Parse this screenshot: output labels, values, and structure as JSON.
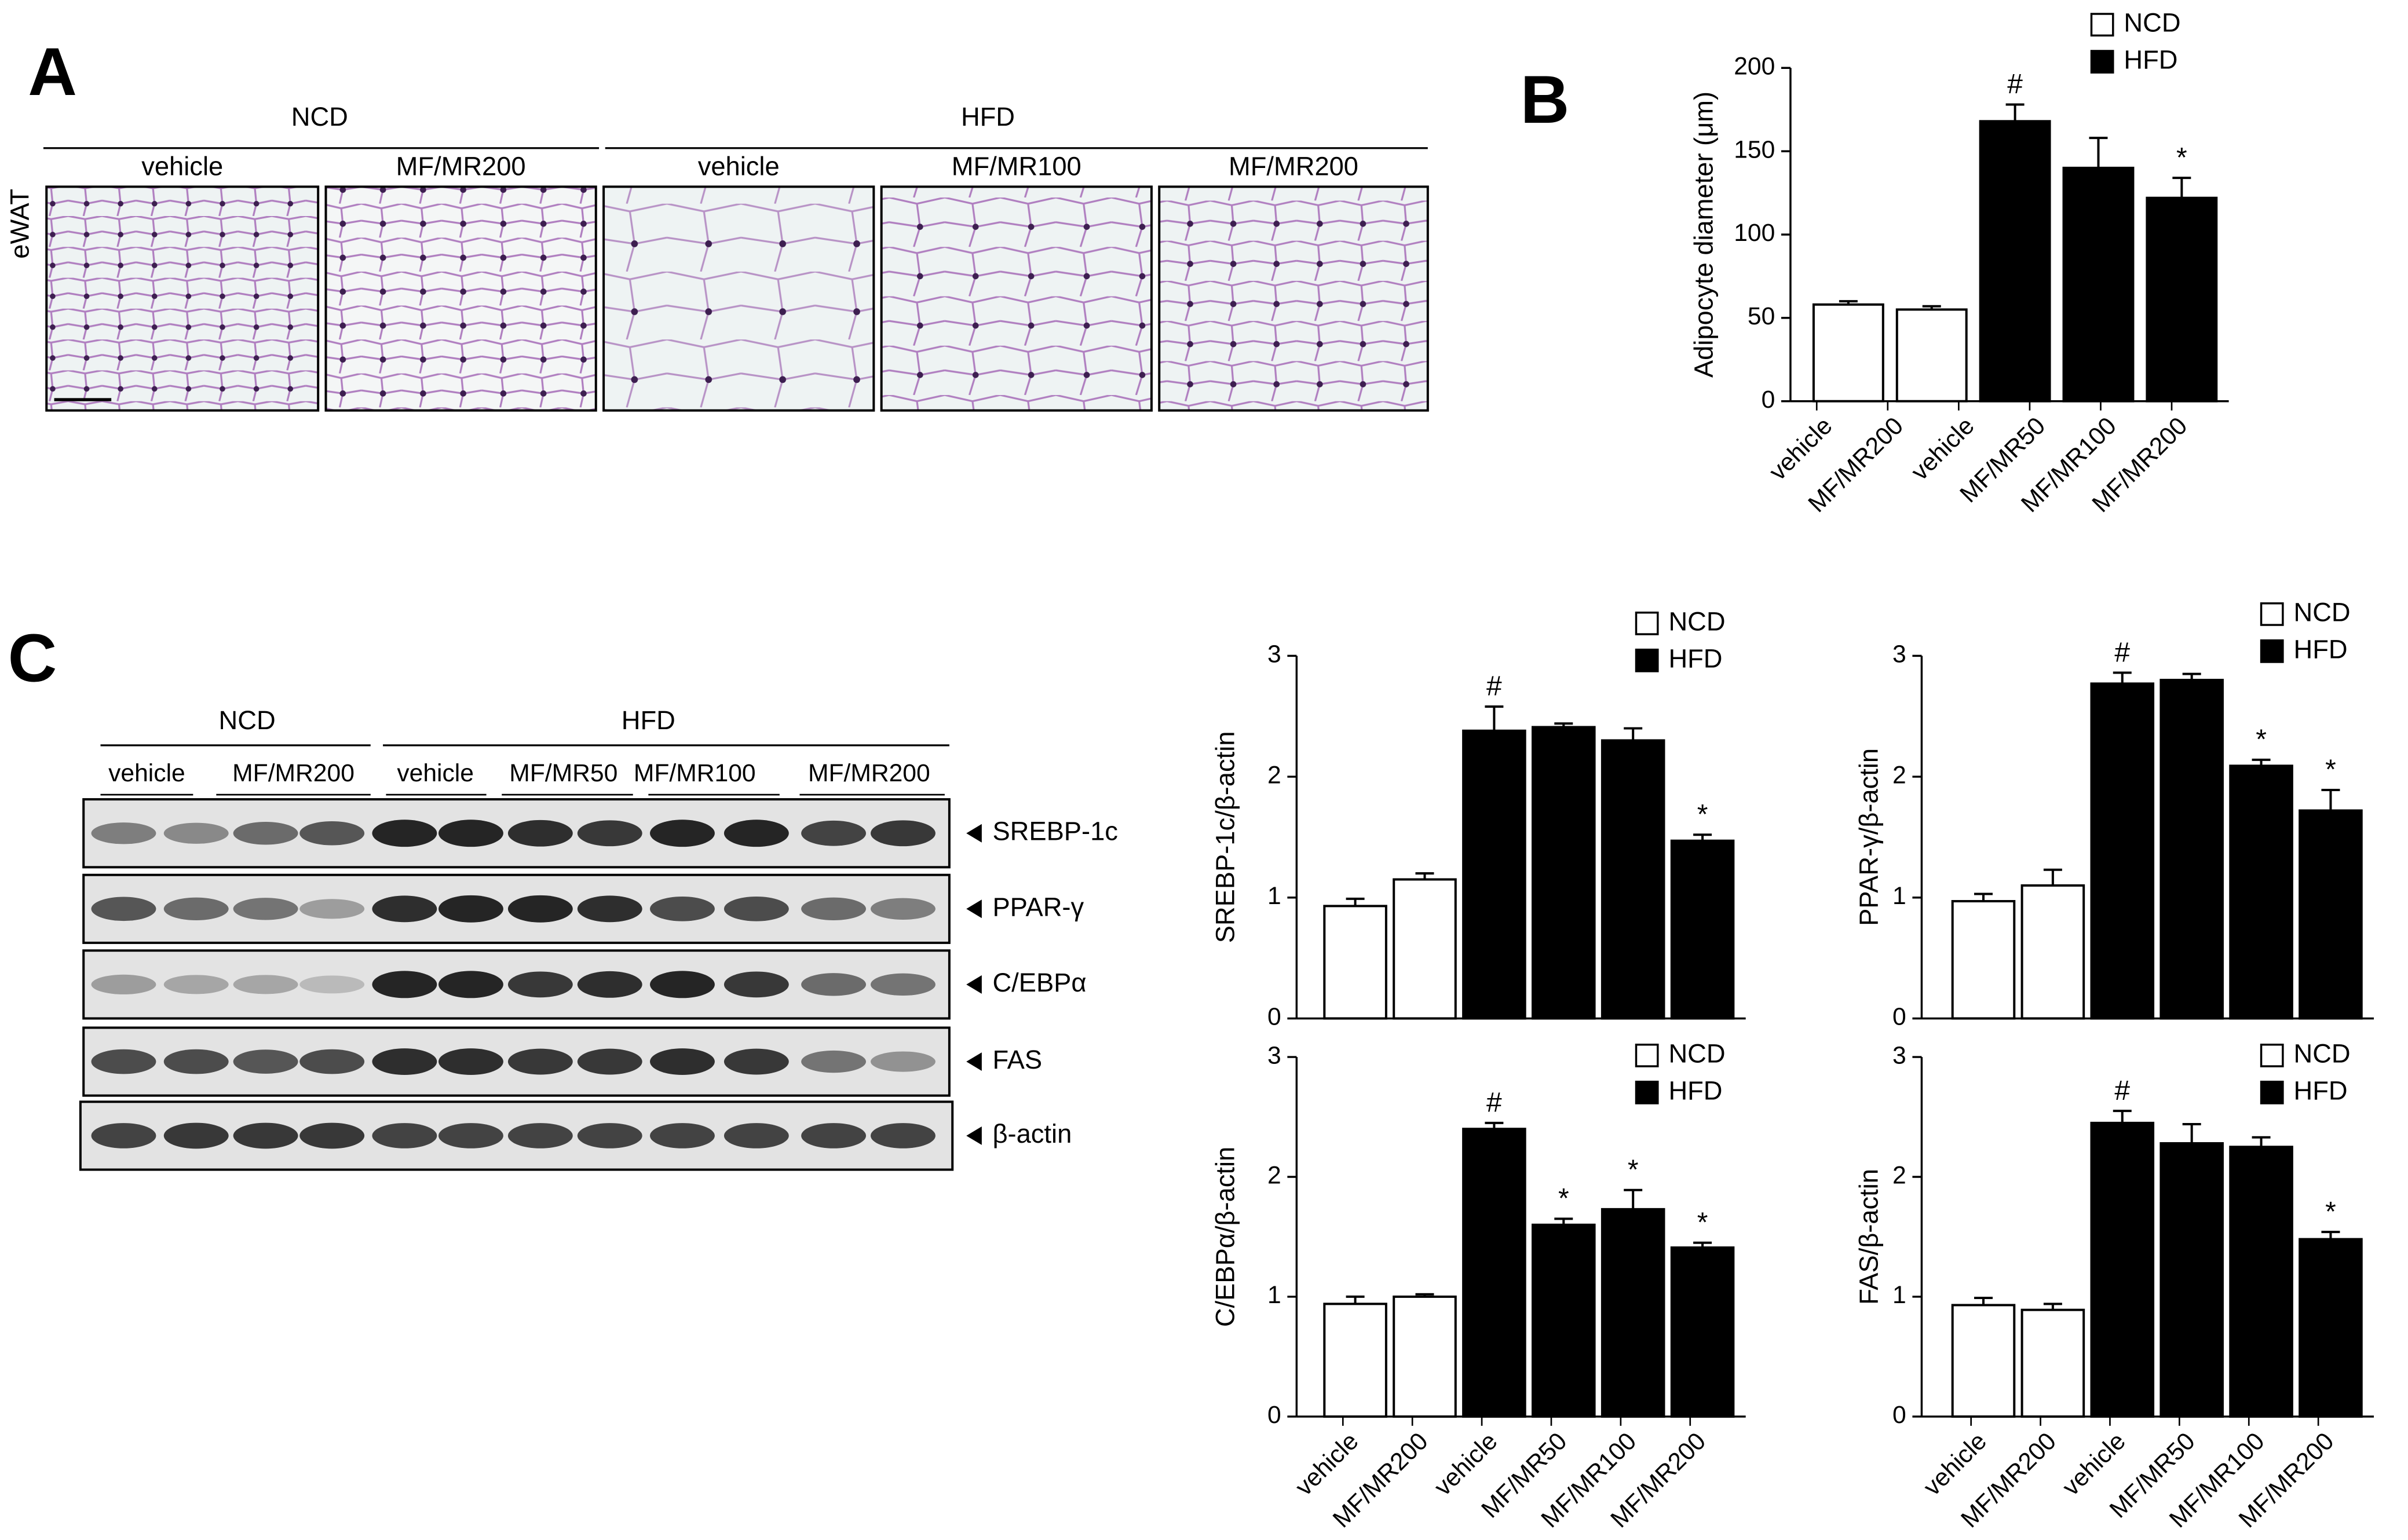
{
  "panel_a": {
    "label": "A",
    "groups": [
      "NCD",
      "HFD"
    ],
    "lanes": [
      "vehicle",
      "MF/MR200",
      "vehicle",
      "MF/MR100",
      "MF/MR200"
    ],
    "tissue": "eWAT"
  },
  "panel_b": {
    "label": "B"
  },
  "panel_c": {
    "label": "C",
    "groups": [
      "NCD",
      "HFD"
    ],
    "lanes": [
      "vehicle",
      "MF/MR200",
      "vehicle",
      "MF/MR50",
      "MF/MR100",
      "MF/MR200"
    ],
    "proteins": [
      "SREBP-1c",
      "PPAR-γ",
      "C/EBPα",
      "FAS",
      "β-actin"
    ]
  },
  "chart_data": [
    {
      "type": "bar",
      "y_label": "Adipocyte  diameter (μm)",
      "categories": [
        "vehicle",
        "MF/MR200",
        "vehicle",
        "MF/MR50",
        "MF/MR100",
        "MF/MR200"
      ],
      "values": [
        58,
        55,
        168,
        140,
        122,
        null
      ],
      "errors": [
        2,
        2,
        10,
        18,
        12,
        null
      ],
      "colors": [
        "#ffffff",
        "#ffffff",
        "#000000",
        "#000000",
        "#000000",
        "#000000"
      ],
      "ylim": [
        0,
        200
      ],
      "yticks": [
        0,
        50,
        100,
        150,
        200
      ],
      "legend": [
        {
          "name": "NCD",
          "color": "#ffffff"
        },
        {
          "name": "HFD",
          "color": "#000000"
        }
      ],
      "annotations": [
        {
          "index": 2,
          "text": "#"
        },
        {
          "index": 4,
          "text": "*"
        }
      ]
    },
    {
      "type": "bar",
      "y_label": "SREBP-1c/β-actin",
      "values": [
        0.93,
        1.15,
        2.38,
        2.41,
        2.3,
        1.47
      ],
      "errors": [
        0.06,
        0.05,
        0.2,
        0.03,
        0.1,
        0.05
      ],
      "colors": [
        "#ffffff",
        "#ffffff",
        "#000000",
        "#000000",
        "#000000",
        "#000000"
      ],
      "ylim": [
        0,
        3
      ],
      "yticks": [
        0,
        1,
        2,
        3
      ],
      "legend": [
        {
          "name": "NCD",
          "color": "#ffffff"
        },
        {
          "name": "HFD",
          "color": "#000000"
        }
      ],
      "annotations": [
        {
          "index": 2,
          "text": "#"
        },
        {
          "index": 5,
          "text": "*"
        }
      ]
    },
    {
      "type": "bar",
      "y_label": "PPAR-γ/β-actin",
      "values": [
        0.97,
        1.1,
        2.77,
        2.8,
        2.09,
        1.72
      ],
      "errors": [
        0.06,
        0.13,
        0.09,
        0.05,
        0.05,
        0.17
      ],
      "colors": [
        "#ffffff",
        "#ffffff",
        "#000000",
        "#000000",
        "#000000",
        "#000000"
      ],
      "ylim": [
        0,
        3
      ],
      "yticks": [
        0,
        1,
        2,
        3
      ],
      "legend": [
        {
          "name": "NCD",
          "color": "#ffffff"
        },
        {
          "name": "HFD",
          "color": "#000000"
        }
      ],
      "annotations": [
        {
          "index": 2,
          "text": "#"
        },
        {
          "index": 4,
          "text": "*"
        },
        {
          "index": 5,
          "text": "*"
        }
      ]
    },
    {
      "type": "bar",
      "y_label": "C/EBPα/β-actin",
      "categories": [
        "vehicle",
        "MF/MR200",
        "vehicle",
        "MF/MR50",
        "MF/MR100",
        "MF/MR200"
      ],
      "values": [
        0.94,
        1.0,
        2.4,
        1.6,
        1.73,
        1.41
      ],
      "errors": [
        0.06,
        0.02,
        0.05,
        0.05,
        0.16,
        0.04
      ],
      "colors": [
        "#ffffff",
        "#ffffff",
        "#000000",
        "#000000",
        "#000000",
        "#000000"
      ],
      "ylim": [
        0,
        3
      ],
      "yticks": [
        0,
        1,
        2,
        3
      ],
      "legend": [
        {
          "name": "NCD",
          "color": "#ffffff"
        },
        {
          "name": "HFD",
          "color": "#000000"
        }
      ],
      "annotations": [
        {
          "index": 2,
          "text": "#"
        },
        {
          "index": 3,
          "text": "*"
        },
        {
          "index": 4,
          "text": "*"
        },
        {
          "index": 5,
          "text": "*"
        }
      ]
    },
    {
      "type": "bar",
      "y_label": "FAS/β-actin",
      "categories": [
        "vehicle",
        "MF/MR200",
        "vehicle",
        "MF/MR50",
        "MF/MR100",
        "MF/MR200"
      ],
      "values": [
        0.93,
        0.89,
        2.45,
        2.28,
        2.25,
        1.48
      ],
      "errors": [
        0.06,
        0.05,
        0.1,
        0.16,
        0.08,
        0.06
      ],
      "colors": [
        "#ffffff",
        "#ffffff",
        "#000000",
        "#000000",
        "#000000",
        "#000000"
      ],
      "ylim": [
        0,
        3
      ],
      "yticks": [
        0,
        1,
        2,
        3
      ],
      "legend": [
        {
          "name": "NCD",
          "color": "#ffffff"
        },
        {
          "name": "HFD",
          "color": "#000000"
        }
      ],
      "annotations": [
        {
          "index": 2,
          "text": "#"
        },
        {
          "index": 5,
          "text": "*"
        }
      ]
    }
  ]
}
